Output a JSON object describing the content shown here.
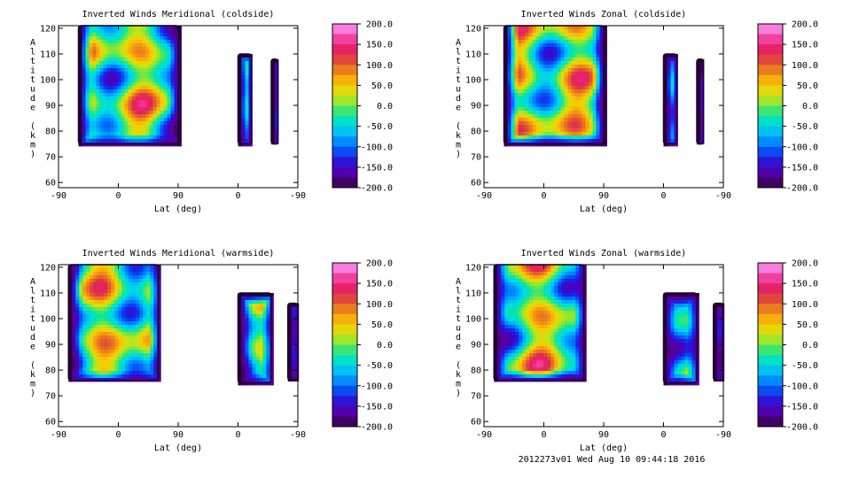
{
  "footer": "2012273v01 Wed Aug 10 09:44:18 2016",
  "chart_data": [
    {
      "type": "contour",
      "title": "Inverted Winds Meridional (coldside)",
      "xlabel": "Lat (deg)",
      "ylabel": "Altitude (km)",
      "x_tick_labels": [
        "-90",
        "0",
        "90",
        "0",
        "-90"
      ],
      "y_ticks": [
        60,
        70,
        80,
        90,
        100,
        110,
        120
      ],
      "ylim": [
        58,
        121
      ],
      "colorbar_ticks": [
        "200.0",
        "150.0",
        "100.0",
        "50.0",
        "0.0",
        "-50.0",
        "-100.0",
        "-150.0",
        "-200.0"
      ],
      "colorbar_range": [
        -200,
        200
      ],
      "regions": [
        {
          "lon0": -60,
          "lon1": 90,
          "z0": 75,
          "z1": 121
        },
        {
          "lon0": 0,
          "lon1": -20,
          "z0": 75,
          "z1": 110
        },
        {
          "lon0": -50,
          "lon1": -60,
          "z0": 75,
          "z1": 108
        }
      ]
    },
    {
      "type": "contour",
      "title": "Inverted Winds Zonal (coldside)",
      "xlabel": "Lat (deg)",
      "ylabel": "Altitude (km)",
      "x_tick_labels": [
        "-90",
        "0",
        "90",
        "0",
        "-90"
      ],
      "y_ticks": [
        60,
        70,
        80,
        90,
        100,
        110,
        120
      ],
      "ylim": [
        58,
        121
      ],
      "colorbar_ticks": [
        "200.0",
        "150.0",
        "100.0",
        "50.0",
        "0.0",
        "-50.0",
        "-100.0",
        "-150.0",
        "-200.0"
      ],
      "colorbar_range": [
        -200,
        200
      ],
      "regions": [
        {
          "lon0": -60,
          "lon1": 90,
          "z0": 75,
          "z1": 121
        },
        {
          "lon0": 0,
          "lon1": -20,
          "z0": 75,
          "z1": 110
        },
        {
          "lon0": -50,
          "lon1": -60,
          "z0": 75,
          "z1": 108
        }
      ]
    },
    {
      "type": "contour",
      "title": "Inverted Winds Meridional (warmside)",
      "xlabel": "Lat (deg)",
      "ylabel": "Altitude (km)",
      "x_tick_labels": [
        "-90",
        "0",
        "90",
        "0",
        "-90"
      ],
      "y_ticks": [
        60,
        70,
        80,
        90,
        100,
        110,
        120
      ],
      "ylim": [
        58,
        121
      ],
      "colorbar_ticks": [
        "200.0",
        "150.0",
        "100.0",
        "50.0",
        "0.0",
        "-50.0",
        "-100.0",
        "-150.0",
        "-200.0"
      ],
      "colorbar_range": [
        -200,
        200
      ],
      "regions": [
        {
          "lon0": -75,
          "lon1": 60,
          "z0": 76,
          "z1": 121
        },
        {
          "lon0": 0,
          "lon1": -50,
          "z0": 75,
          "z1": 110
        },
        {
          "lon0": -75,
          "lon1": -90,
          "z0": 76,
          "z1": 106
        }
      ]
    },
    {
      "type": "contour",
      "title": "Inverted Winds Zonal (warmside)",
      "xlabel": "Lat (deg)",
      "ylabel": "Altitude (km)",
      "x_tick_labels": [
        "-90",
        "0",
        "90",
        "0",
        "-90"
      ],
      "y_ticks": [
        60,
        70,
        80,
        90,
        100,
        110,
        120
      ],
      "ylim": [
        58,
        121
      ],
      "colorbar_ticks": [
        "200.0",
        "150.0",
        "100.0",
        "50.0",
        "0.0",
        "-50.0",
        "-100.0",
        "-150.0",
        "-200.0"
      ],
      "colorbar_range": [
        -200,
        200
      ],
      "regions": [
        {
          "lon0": -75,
          "lon1": 60,
          "z0": 76,
          "z1": 121
        },
        {
          "lon0": 0,
          "lon1": -50,
          "z0": 75,
          "z1": 110
        },
        {
          "lon0": -75,
          "lon1": -90,
          "z0": 76,
          "z1": 106
        }
      ]
    }
  ]
}
